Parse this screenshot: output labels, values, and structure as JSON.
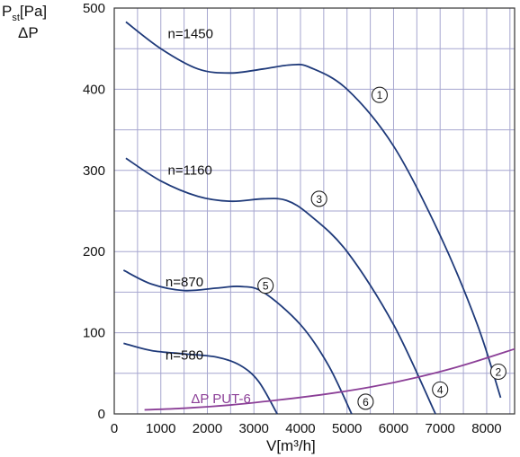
{
  "chart_data": {
    "type": "line",
    "ylabel_main": "P",
    "ylabel_sub": "st",
    "ylabel_unit": "[Pa]",
    "ylabel_line2": "ΔP",
    "xlabel": "V[m³/h]",
    "xlim": [
      0,
      8600
    ],
    "ylim": [
      0,
      500
    ],
    "xticks": [
      "0",
      "1000",
      "2000",
      "3000",
      "4000",
      "5000",
      "6000",
      "7000",
      "8000"
    ],
    "yticks": [
      "0",
      "100",
      "200",
      "300",
      "400",
      "500"
    ],
    "grid": true,
    "series": [
      {
        "name": "n=1450",
        "marker": "1",
        "x": [
          250,
          1000,
          1800,
          2500,
          3200,
          3800,
          4200,
          5000,
          6000,
          7000,
          7800,
          8300
        ],
        "y": [
          483,
          450,
          425,
          420,
          425,
          430,
          427,
          400,
          330,
          220,
          110,
          20
        ]
      },
      {
        "name": "n=1160",
        "marker": "3",
        "x": [
          250,
          1000,
          1800,
          2500,
          3200,
          3700,
          4200,
          5000,
          6000,
          6900
        ],
        "y": [
          315,
          287,
          268,
          262,
          265,
          263,
          245,
          200,
          110,
          0
        ]
      },
      {
        "name": "n=870",
        "marker": "5",
        "x": [
          200,
          800,
          1500,
          2200,
          2700,
          3200,
          4000,
          4600,
          5100
        ],
        "y": [
          177,
          160,
          152,
          155,
          157,
          150,
          110,
          60,
          0
        ]
      },
      {
        "name": "n=580",
        "marker": "6",
        "x": [
          200,
          800,
          1500,
          2200,
          2700,
          3100,
          3500
        ],
        "y": [
          87,
          78,
          74,
          70,
          60,
          40,
          0
        ]
      },
      {
        "name": "ΔP PUT-6",
        "marker": "",
        "x": [
          650,
          1500,
          2500,
          3500,
          4500,
          5500,
          6500,
          7500,
          8600
        ],
        "y": [
          5,
          7,
          11,
          17,
          24,
          33,
          45,
          60,
          80
        ]
      }
    ],
    "markers": [
      {
        "label": "1",
        "x": 5700,
        "y": 393
      },
      {
        "label": "3",
        "x": 4400,
        "y": 265
      },
      {
        "label": "5",
        "x": 3250,
        "y": 158
      },
      {
        "label": "6",
        "x": 5400,
        "y": 15
      },
      {
        "label": "4",
        "x": 7000,
        "y": 30
      },
      {
        "label": "2",
        "x": 8250,
        "y": 52
      }
    ]
  }
}
